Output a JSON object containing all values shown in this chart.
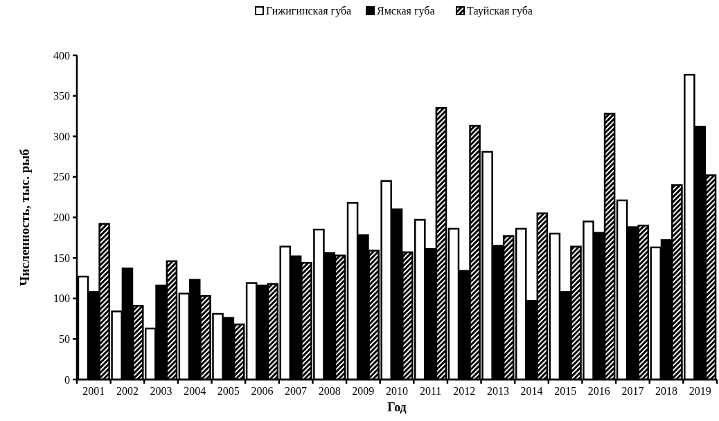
{
  "chart_data": {
    "type": "bar",
    "xlabel": "Год",
    "ylabel": "Численность, тыс. рыб",
    "categories": [
      "2001",
      "2002",
      "2003",
      "2004",
      "2005",
      "2006",
      "2007",
      "2008",
      "2009",
      "2010",
      "2011",
      "2012",
      "2013",
      "2014",
      "2015",
      "2016",
      "2017",
      "2018",
      "2019"
    ],
    "series": [
      {
        "name": "Гижигинская губа",
        "color": "#ffffff",
        "values": [
          127,
          84,
          63,
          106,
          81,
          119,
          164,
          185,
          218,
          245,
          197,
          186,
          281,
          186,
          180,
          195,
          221,
          163,
          376
        ]
      },
      {
        "name": "Ямская губа",
        "color": "#000000",
        "values": [
          108,
          137,
          116,
          123,
          76,
          116,
          152,
          156,
          178,
          210,
          161,
          134,
          165,
          97,
          108,
          181,
          188,
          172,
          312
        ]
      },
      {
        "name": "Тауйская губа",
        "color": "#000000",
        "type": "bar",
        "values": [
          192,
          91,
          146,
          103,
          68,
          118,
          144,
          153,
          159,
          157,
          335,
          313,
          177,
          205,
          164,
          328,
          190,
          240,
          252
        ]
      }
    ],
    "ylim": [
      0,
      400
    ],
    "yticks": [
      0,
      50,
      100,
      150,
      200,
      250,
      300,
      350,
      400
    ],
    "legend": "top",
    "grid": false
  }
}
